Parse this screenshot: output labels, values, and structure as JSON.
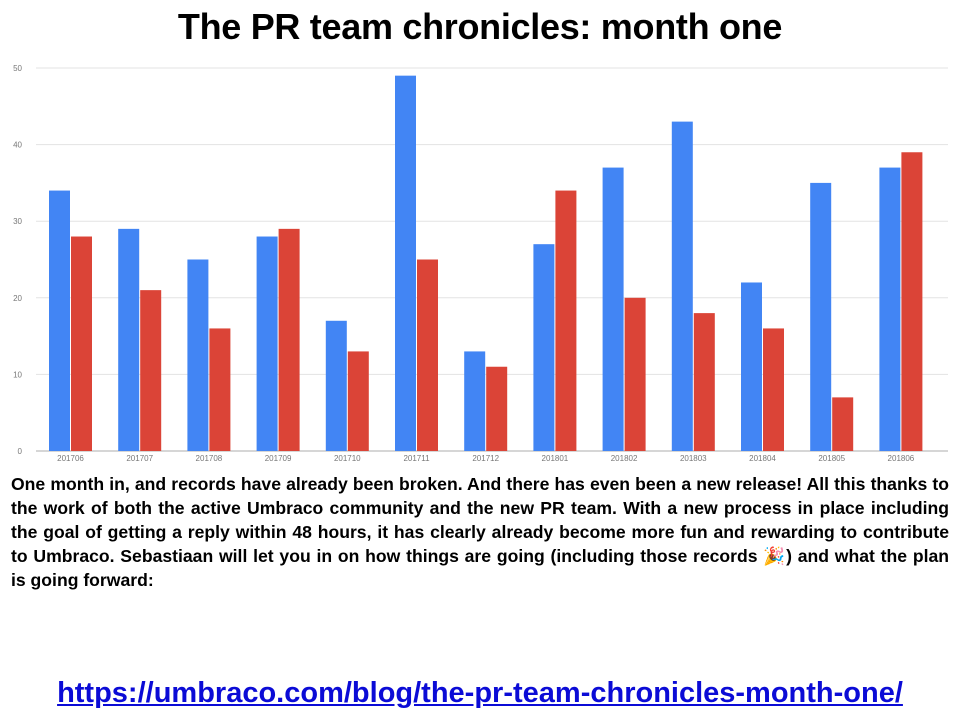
{
  "page": {
    "title": "The PR team chronicles: month one",
    "description": "One month in, and records have already been broken. And there has even been a new release! All this thanks to the work of both the active Umbraco community and the new PR team. With a new process in place including the goal of getting a reply within 48 hours, it has clearly already become more fun and rewarding to contribute to Umbraco. Sebastiaan will let you in on how things are going (including those records 🎉) and what the plan is going forward:",
    "link": "https://umbraco.com/blog/the-pr-team-chronicles-month-one/"
  },
  "chart_data": {
    "type": "bar",
    "categories": [
      "201706",
      "201707",
      "201708",
      "201709",
      "201710",
      "201711",
      "201712",
      "201801",
      "201802",
      "201803",
      "201804",
      "201805",
      "201806"
    ],
    "series": [
      {
        "values": [
          34,
          29,
          25,
          28,
          17,
          49,
          13,
          27,
          37,
          43,
          22,
          35,
          37
        ],
        "color": "#4285f4"
      },
      {
        "values": [
          28,
          21,
          16,
          29,
          13,
          25,
          11,
          34,
          20,
          18,
          16,
          7,
          39
        ],
        "color": "#db4437"
      }
    ],
    "yticks": [
      0,
      10,
      20,
      30,
      40,
      50
    ],
    "ylim": [
      0,
      50
    ],
    "grid": true,
    "legend": "none"
  }
}
